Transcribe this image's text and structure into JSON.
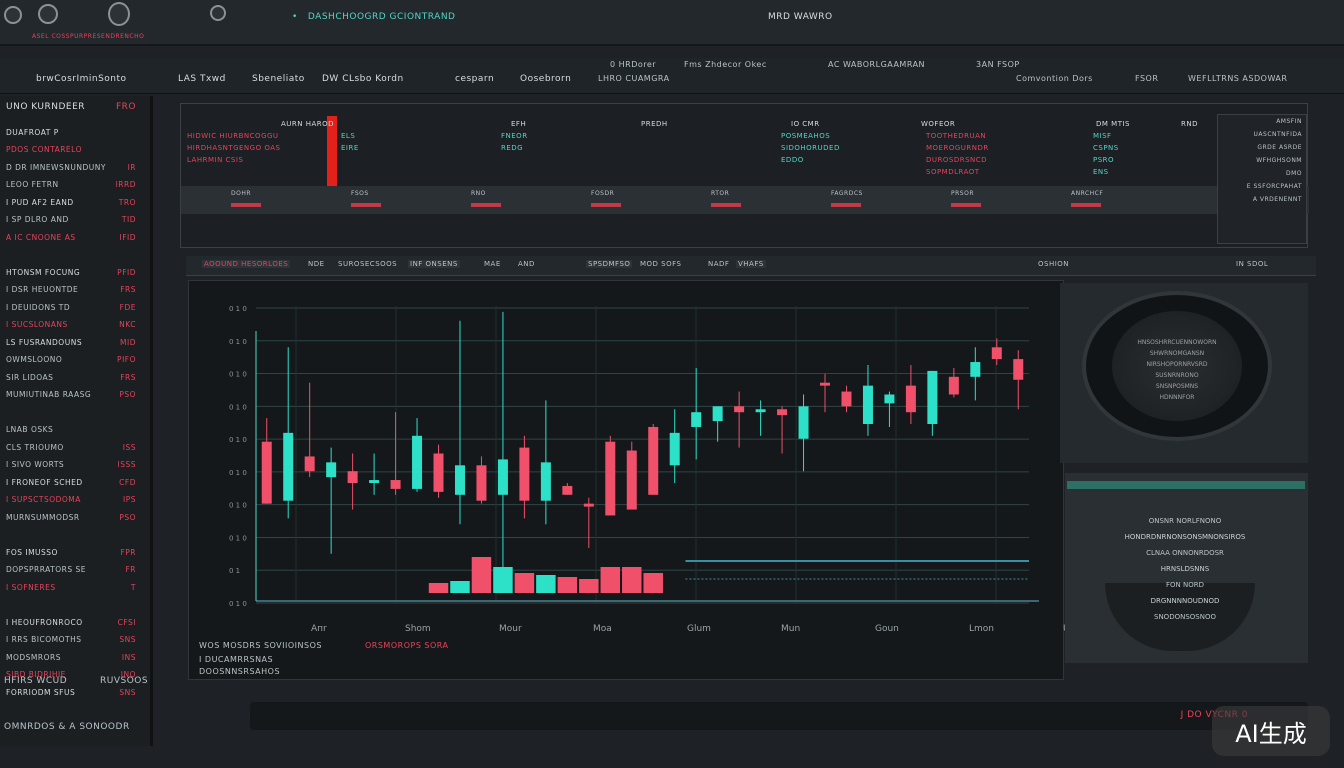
{
  "header": {
    "title": "DASHCHOOGRD GCIONTRAND",
    "subtitle": "ASEL COSSPURPRESENDRENCHO",
    "right_label": "MRD WAWRO"
  },
  "nav": {
    "items": [
      "brwCosrIminSonto",
      "LAS Txwd",
      "Sbeneliato",
      "DW CLsbo Kordn",
      "cesparn",
      "Oosebrorn"
    ],
    "right_items": [
      "0 HRDorer",
      "LHRO CUAMGRA",
      "Fms Zhdecor Okec",
      "AC WABORLGAAMRAN",
      "FSOR",
      "Comvontion Dors",
      "3AN FSOP",
      "WEFLLTRNS ASDOWAR"
    ]
  },
  "sidebar": {
    "title": "UNO KURNDEER",
    "title_value": "FRO",
    "rows": [
      {
        "l": "DUAFROAT P",
        "v": ""
      },
      {
        "l": "PDOS CONTARELO",
        "v": ""
      },
      {
        "l": "D DR IMNEWSNUNDUNY",
        "v": "IR"
      },
      {
        "l": "LEOO FETRN",
        "v": "IRRD"
      },
      {
        "l": "I PUD AF2 EAND",
        "v": "TRO"
      },
      {
        "l": "I SP DLRO AND",
        "v": "TID"
      },
      {
        "l": "A IC CNOONE AS",
        "v": "IFID"
      },
      {
        "l": "",
        "v": ""
      },
      {
        "l": "HTONSM FOCUNG",
        "v": "PFID"
      },
      {
        "l": "I DSR HEUONTDE",
        "v": "FRS"
      },
      {
        "l": "I DEUIDONS TD",
        "v": "FDE"
      },
      {
        "l": "I SUCSLONANS",
        "v": "NKC"
      },
      {
        "l": "LS FUSRANDOUNS",
        "v": "MID"
      },
      {
        "l": "OWMSLOONO",
        "v": "PIFO"
      },
      {
        "l": "SIR LIDOAS",
        "v": "FRS"
      },
      {
        "l": "MUMIUTINAB RAASG",
        "v": "PSO"
      },
      {
        "l": "",
        "v": ""
      },
      {
        "l": "LNAB OSKS",
        "v": ""
      },
      {
        "l": "CLS TRIOUMO",
        "v": "ISS"
      },
      {
        "l": "I SIVO WORTS",
        "v": "ISSS"
      },
      {
        "l": "I FRONEOF SCHED",
        "v": "CFD"
      },
      {
        "l": "I SUPSCTSODOMA",
        "v": "IPS"
      },
      {
        "l": "MURNSUMMODSR",
        "v": "PSO"
      },
      {
        "l": "",
        "v": ""
      },
      {
        "l": "FOS IMUSSO",
        "v": "FPR"
      },
      {
        "l": "DOPSPRRATORS SE",
        "v": "FR"
      },
      {
        "l": "I SOFNERES",
        "v": "T"
      },
      {
        "l": "",
        "v": ""
      },
      {
        "l": "I HEOUFRONROCO",
        "v": "CFSI"
      },
      {
        "l": "I RRS BICOMOTHS",
        "v": "SNS"
      },
      {
        "l": "MODSMRORS",
        "v": "INS"
      },
      {
        "l": "SIBD BIDRIHIE",
        "v": "INO"
      },
      {
        "l": "FORRIODM SFUS",
        "v": "SNS"
      }
    ],
    "footer": [
      "HFIRS WCUD",
      "RUVSOOS",
      "OMNRDOS & A SONOODR"
    ]
  },
  "table": {
    "cols": [
      "AURN HAROD",
      "EFH",
      "PREDH",
      "IO CMR",
      "WOFEOR",
      "DM MTIS",
      "RND"
    ],
    "rows": [
      [
        "HIDWIC HIURBNCOGGU",
        "ELS",
        "FNEOR",
        "POSMEAHOS",
        "TOOTHEDRUAN",
        "MISF"
      ],
      [
        "HIRDHASNTGENGO OAS",
        "EIRE",
        "REDG",
        "SIDOHORUDED",
        "MOEROGURNDR",
        "CSPNS"
      ],
      [
        "LAHRMIN CSIS",
        "",
        "",
        "EDDO",
        "DUROSDRSNCD",
        "PSRO"
      ],
      [
        "",
        "",
        "",
        "",
        "SOPMDLRAOT",
        "ENS"
      ]
    ],
    "footer": [
      "DOHR",
      "FSOS",
      "RNO",
      "FOSDR",
      "RTOR",
      "FAGRDCS",
      "PRSOR",
      "ANRCHCF"
    ],
    "right": [
      "AMSFIN",
      "UASCNTNFIDA",
      "GRDE ASRDE",
      "WFHGHSONM",
      "DMO",
      "E SSFORCPAHAT",
      "A VRDENENNT"
    ]
  },
  "toolbar": {
    "items": [
      "AOOUND HESORLOES",
      "NDE",
      "SUROSECSOOS",
      "INF ONSENS",
      "MAE",
      "AND",
      "SPSDMFSO",
      "MOD SOFS",
      "NADF",
      "VHAFS",
      "OSHION",
      "IN SDOL"
    ]
  },
  "chart_data": {
    "type": "candlestick",
    "title": "",
    "xlabel": "",
    "ylabel": "",
    "ylim": [
      0,
      10
    ],
    "ytick_labels": [
      "0 1 0",
      "0 1 0",
      "0 1 0",
      "0 1 0",
      "0 1 0",
      "0 1 0",
      "0 1 0",
      "0 1 0",
      "0 1",
      "0 1 0"
    ],
    "xtick_labels": [
      "Aпr",
      "Shom",
      "Mour",
      "Moa",
      "Glum",
      "Mun",
      "Goun",
      "Lmon",
      "Ushm"
    ],
    "candles": [
      [
        5.4,
        6.2,
        3.3,
        3.3
      ],
      [
        3.4,
        8.6,
        2.8,
        5.7
      ],
      [
        4.9,
        7.4,
        4.2,
        4.4
      ],
      [
        4.2,
        5.2,
        1.6,
        4.7
      ],
      [
        4.4,
        5.0,
        3.1,
        4.0
      ],
      [
        4.0,
        5.0,
        3.6,
        4.1
      ],
      [
        4.1,
        6.4,
        3.6,
        3.8
      ],
      [
        3.8,
        6.2,
        3.7,
        5.6
      ],
      [
        5.0,
        5.3,
        3.5,
        3.7
      ],
      [
        3.6,
        9.5,
        2.6,
        4.6
      ],
      [
        4.6,
        4.9,
        3.3,
        3.4
      ],
      [
        3.6,
        9.8,
        0.6,
        4.8
      ],
      [
        5.2,
        5.6,
        2.8,
        3.4
      ],
      [
        3.4,
        6.8,
        2.6,
        4.7
      ],
      [
        3.9,
        4.0,
        3.6,
        3.6
      ],
      [
        3.3,
        3.5,
        1.8,
        3.2
      ],
      [
        5.4,
        5.6,
        2.9,
        2.9
      ],
      [
        5.1,
        5.4,
        3.1,
        3.1
      ],
      [
        5.9,
        6.0,
        3.6,
        3.6
      ],
      [
        4.6,
        6.5,
        4.0,
        5.7
      ],
      [
        5.9,
        7.9,
        4.8,
        6.4
      ],
      [
        6.1,
        6.6,
        5.4,
        6.6
      ],
      [
        6.6,
        7.1,
        5.2,
        6.4
      ],
      [
        6.4,
        6.8,
        5.6,
        6.5
      ],
      [
        6.5,
        6.6,
        5.0,
        6.3
      ],
      [
        5.5,
        7.0,
        4.4,
        6.6
      ],
      [
        7.4,
        7.7,
        6.4,
        7.3
      ],
      [
        7.1,
        7.3,
        6.4,
        6.6
      ],
      [
        6.0,
        8.0,
        5.6,
        7.3
      ],
      [
        6.7,
        7.1,
        5.9,
        7.0
      ],
      [
        7.3,
        8.0,
        6.0,
        6.4
      ],
      [
        6.0,
        7.8,
        5.6,
        7.8
      ],
      [
        7.6,
        7.9,
        6.9,
        7.0
      ],
      [
        7.6,
        8.6,
        6.8,
        8.1
      ],
      [
        8.6,
        8.9,
        8.0,
        8.2
      ],
      [
        8.2,
        8.5,
        6.5,
        7.5
      ]
    ],
    "volume": [
      0,
      0,
      0,
      0,
      0,
      0,
      0,
      0,
      0.5,
      0.6,
      1.8,
      1.3,
      1.0,
      0.9,
      0.8,
      0.7,
      1.3,
      1.3,
      1.0,
      0,
      0,
      0,
      0,
      0,
      0,
      0,
      0,
      0,
      0,
      0,
      0,
      0,
      0,
      0,
      0,
      0
    ]
  },
  "chart_footer": {
    "lines": [
      "WOS MOSDRS SOVIIOINSOS",
      "I DUCAMRRSNAS",
      "DOOSNNSRSAHOS"
    ],
    "red_note": "ORSMOROPS SORA"
  },
  "right_panel": {
    "gauge_lines": [
      "HNSOSHRRCUENNOWORN",
      "SHWRNOMGANSN",
      "NIRSHOPORNRVSRD",
      "SUSNRNRONO",
      "SNSNPOSMNS",
      "HDNNNFOR"
    ],
    "list": [
      "ONSNR NORLFNONO",
      "HONDRDNRNONSONSMNONSIROS",
      "CLNAA ONNONRDOSR",
      "HRNSLDSNNS",
      "FON NORD",
      "DRGNNNNOUDNOD",
      "SNODONSOSNOO"
    ]
  },
  "bottom": {
    "status": "J DO VYCNR 0"
  },
  "watermark": "AI生成",
  "colors": {
    "up": "#2de0c8",
    "down": "#f0506a",
    "accent": "#e8425a"
  }
}
